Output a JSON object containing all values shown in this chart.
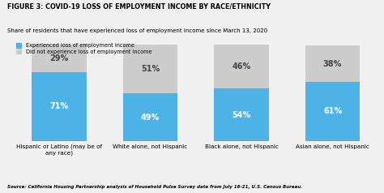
{
  "title": "FIGURE 3: COVID-19 LOSS OF EMPLOYMENT INCOME BY RACE/ETHNICITY",
  "subtitle": "Share of residents that have experienced loss of employment income since March 13, 2020",
  "source": "Source: California Housing Partnership analysis of Household Pulse Survey data from July 16-21, U.S. Census Bureau.",
  "categories": [
    "Hispanic or Latino (may be of\nany race)",
    "White alone, not Hispanic",
    "Black alone, not Hispanic",
    "Asian alone, not Hispanic"
  ],
  "experienced": [
    71,
    49,
    54,
    61
  ],
  "did_not": [
    29,
    51,
    46,
    38
  ],
  "color_experienced": "#4db3e6",
  "color_did_not": "#cccccc",
  "legend_experienced": "Experienced loss of employment income",
  "legend_did_not": "Did not experience loss of employment income",
  "bar_width": 0.6,
  "ylim": [
    0,
    100
  ],
  "background_color": "#f0f0f0"
}
